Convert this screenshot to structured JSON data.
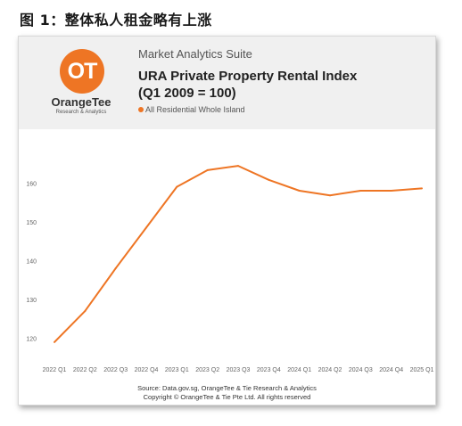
{
  "figure_title": "图 1：整体私人租金略有上涨",
  "header": {
    "logo_text": "OT",
    "brand_name": "OrangeTee",
    "brand_tagline": "Research & Analytics",
    "suite": "Market Analytics Suite",
    "title_line1": "URA Private Property Rental Index",
    "title_line2": "(Q1 2009 = 100)",
    "legend_label": "All Residential Whole Island"
  },
  "footer": {
    "source": "Source: Data.gov.sg, OrangeTee & Tie Research & Analytics",
    "copyright": "Copyright © OrangeTee & Tie Pte Ltd. All rights reserved"
  },
  "colors": {
    "accent": "#ee7524",
    "header_bg": "#f0f0f0"
  },
  "chart_data": {
    "type": "line",
    "title": "URA Private Property Rental Index",
    "subtitle": "(Q1 2009 = 100)",
    "categories": [
      "2022 Q1",
      "2022 Q2",
      "2022 Q3",
      "2022 Q4",
      "2023 Q1",
      "2023 Q2",
      "2023 Q3",
      "2023 Q4",
      "2024 Q1",
      "2024 Q2",
      "2024 Q3",
      "2024 Q4",
      "2025 Q1"
    ],
    "series": [
      {
        "name": "All Residential Whole Island",
        "color": "#ee7524",
        "values": [
          119.0,
          127.0,
          138.0,
          148.5,
          159.0,
          163.3,
          164.4,
          160.8,
          158.0,
          156.8,
          158.0,
          158.0,
          158.6
        ]
      }
    ],
    "y_ticks": [
      120,
      130,
      140,
      150,
      160
    ],
    "ylim": [
      116,
      172
    ],
    "grid": false,
    "legend": "top-left"
  }
}
